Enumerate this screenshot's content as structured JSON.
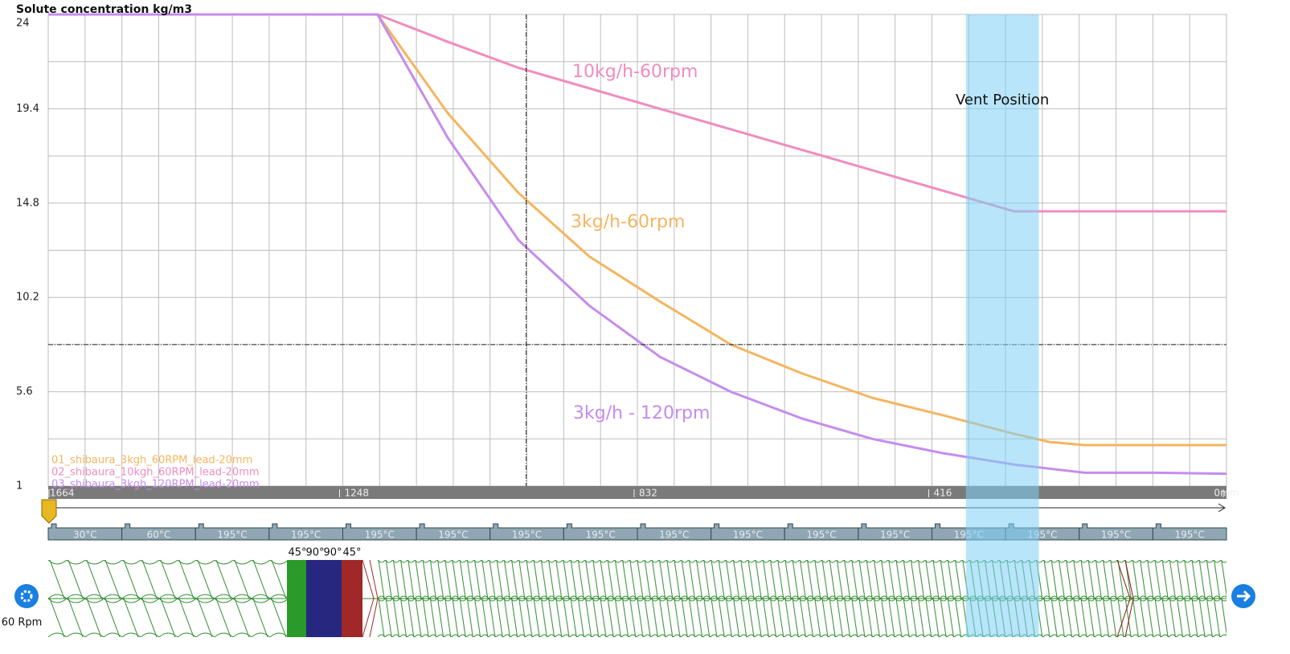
{
  "chart_data": {
    "type": "line",
    "y_label": "Solute concentration kg/m3",
    "x_label": "mm",
    "x": [
      1664,
      1400,
      1199,
      1100,
      1000,
      900,
      800,
      700,
      600,
      500,
      400,
      300,
      250,
      200,
      100,
      0
    ],
    "xlim": [
      1664,
      0
    ],
    "xticks": [
      1664,
      1248,
      832,
      416,
      0
    ],
    "ylim": [
      1,
      24
    ],
    "yticks": [
      1,
      5.6,
      10.2,
      14.8,
      19.4,
      24
    ],
    "grid": true,
    "series": [
      {
        "name": "01_shibaura_3kgh_60RPM_lead-20mm",
        "label": "3kg/h-60rpm",
        "color": "#f5b55f",
        "values": [
          24,
          24,
          24,
          19.2,
          15.3,
          12.2,
          10.0,
          7.9,
          6.5,
          5.3,
          4.45,
          3.55,
          3.15,
          3.0,
          3.0,
          3.0
        ]
      },
      {
        "name": "02_shibaura_10kgh_60RPM_lead-20mm",
        "label": "10kg/h-60rpm",
        "color": "#f08cbf",
        "values": [
          24,
          24,
          24,
          22.67,
          21.4,
          20.4,
          19.4,
          18.4,
          17.4,
          16.4,
          15.4,
          14.4,
          14.4,
          14.4,
          14.4,
          14.4
        ]
      },
      {
        "name": "03_shibaura_3kgh_120RPM_lead-20mm",
        "label": "3kg/h - 120rpm",
        "color": "#c58cee",
        "values": [
          24,
          24,
          24,
          18.0,
          13.0,
          9.8,
          7.3,
          5.6,
          4.3,
          3.3,
          2.6,
          2.05,
          1.85,
          1.65,
          1.65,
          1.6
        ]
      }
    ],
    "cursor": {
      "x": 989,
      "y": 7.9
    },
    "vent": {
      "label": "Vent Position",
      "range": [
        368,
        265
      ]
    }
  },
  "barrel": {
    "temperatures": [
      "30°C",
      "60°C",
      "195°C",
      "195°C",
      "195°C",
      "195°C",
      "195°C",
      "195°C",
      "195°C",
      "195°C",
      "195°C",
      "195°C",
      "195°C",
      "195°C",
      "195°C",
      "195°C"
    ]
  },
  "screw": {
    "kneading_labels": [
      "45°",
      "90°",
      "90°",
      "45°"
    ],
    "speed": "60 Rpm"
  }
}
